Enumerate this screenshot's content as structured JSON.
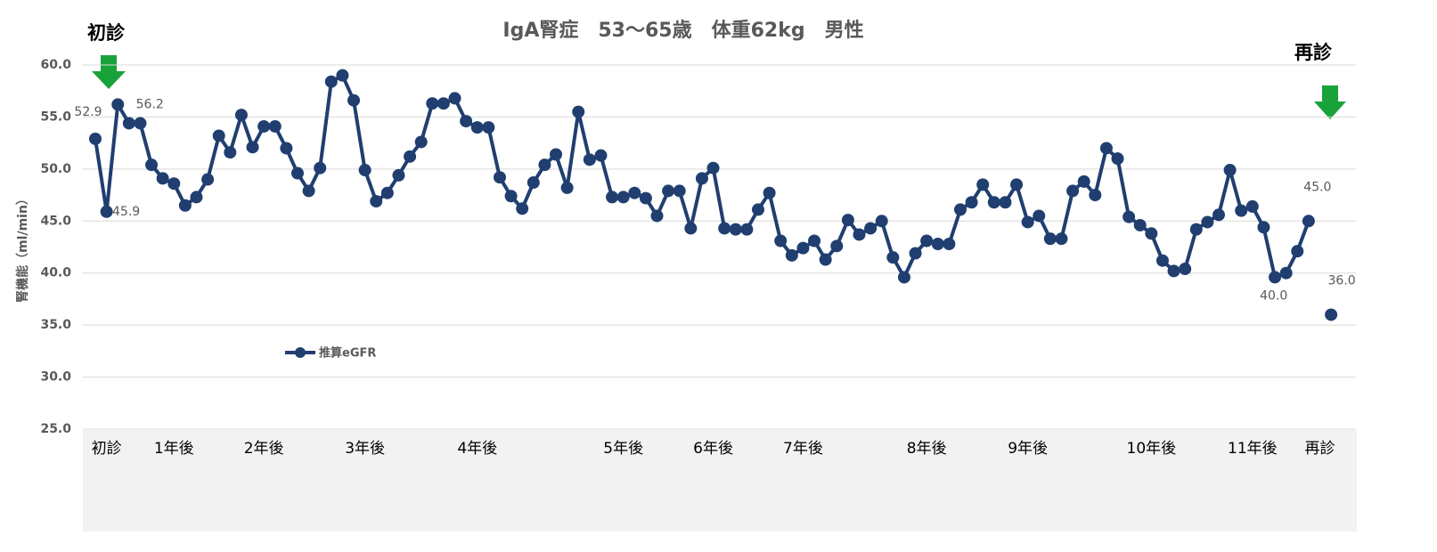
{
  "chart_data": {
    "type": "line",
    "title": "IgA腎症　53～65歳　体重62kg　男性",
    "y_label": "腎機能（ml/min）",
    "annotations": [
      "初診",
      "再診"
    ],
    "categories": [
      null,
      "初診",
      null,
      null,
      null,
      null,
      null,
      "1年後",
      null,
      null,
      null,
      null,
      null,
      null,
      null,
      "2年後",
      null,
      null,
      null,
      null,
      null,
      null,
      null,
      null,
      "3年後",
      null,
      null,
      null,
      null,
      null,
      null,
      null,
      null,
      null,
      "4年後",
      null,
      null,
      null,
      null,
      null,
      null,
      null,
      null,
      null,
      null,
      null,
      null,
      "5年後",
      null,
      null,
      null,
      null,
      null,
      null,
      null,
      "6年後",
      null,
      null,
      null,
      null,
      null,
      null,
      null,
      "7年後",
      null,
      null,
      null,
      null,
      null,
      null,
      null,
      null,
      null,
      null,
      "8年後",
      null,
      null,
      null,
      null,
      null,
      null,
      null,
      null,
      "9年後",
      null,
      null,
      null,
      null,
      null,
      null,
      null,
      null,
      null,
      null,
      "10年後",
      null,
      null,
      null,
      null,
      null,
      null,
      null,
      null,
      "11年後",
      null,
      null,
      null,
      null,
      null,
      "再診",
      null
    ],
    "series": [
      {
        "name": "推算eGFR",
        "color": "#203f70",
        "values": [
          52.9,
          45.9,
          56.2,
          54.4,
          54.4,
          50.4,
          49.1,
          48.6,
          46.5,
          47.3,
          49.0,
          53.2,
          51.6,
          55.2,
          52.1,
          54.1,
          54.1,
          52.0,
          49.6,
          47.9,
          50.1,
          58.4,
          59.0,
          56.6,
          49.9,
          46.9,
          47.7,
          49.4,
          51.2,
          52.6,
          56.3,
          56.3,
          56.8,
          54.6,
          54.0,
          54.0,
          49.2,
          47.4,
          46.2,
          48.7,
          50.4,
          51.4,
          48.2,
          55.5,
          50.9,
          51.3,
          47.3,
          47.3,
          47.7,
          47.2,
          45.5,
          47.9,
          47.9,
          44.3,
          49.1,
          50.1,
          44.3,
          44.2,
          44.2,
          46.1,
          47.7,
          43.1,
          41.7,
          42.4,
          43.1,
          41.3,
          42.6,
          45.1,
          43.7,
          44.3,
          45.0,
          41.5,
          39.6,
          41.9,
          43.1,
          42.8,
          42.8,
          46.1,
          46.8,
          48.5,
          46.8,
          46.8,
          48.5,
          44.9,
          45.5,
          43.3,
          43.3,
          47.9,
          48.8,
          47.5,
          52.0,
          51.0,
          45.4,
          44.6,
          43.8,
          41.2,
          40.2,
          40.4,
          44.2,
          44.9,
          45.6,
          49.9,
          46.0,
          46.4,
          44.4,
          39.6,
          40.0,
          42.1,
          45.0,
          null,
          36.0
        ],
        "value_labels": [
          "52.9",
          "45.9",
          "56.2",
          null,
          null,
          null,
          null,
          null,
          null,
          null,
          null,
          null,
          null,
          null,
          null,
          null,
          null,
          null,
          null,
          null,
          null,
          null,
          null,
          null,
          null,
          null,
          null,
          null,
          null,
          null,
          null,
          null,
          null,
          null,
          null,
          null,
          null,
          null,
          null,
          null,
          null,
          null,
          null,
          null,
          null,
          null,
          null,
          null,
          null,
          null,
          null,
          null,
          null,
          null,
          null,
          null,
          null,
          null,
          null,
          null,
          null,
          null,
          null,
          null,
          null,
          null,
          null,
          null,
          null,
          null,
          null,
          null,
          null,
          null,
          null,
          null,
          null,
          null,
          null,
          null,
          null,
          null,
          null,
          null,
          null,
          null,
          null,
          null,
          null,
          null,
          null,
          null,
          null,
          null,
          null,
          null,
          null,
          null,
          null,
          null,
          null,
          null,
          null,
          null,
          null,
          null,
          "40.0",
          null,
          "45.0",
          null,
          "36.0"
        ]
      }
    ],
    "ylim": [
      25,
      60
    ],
    "yticks": [
      {
        "value": 25,
        "label": "25.0"
      },
      {
        "value": 30,
        "label": "30.0"
      },
      {
        "value": 35,
        "label": "35.0"
      },
      {
        "value": 40,
        "label": "40.0"
      },
      {
        "value": 45,
        "label": "45.0"
      },
      {
        "value": 50,
        "label": "50.0"
      },
      {
        "value": 55,
        "label": "55.0"
      },
      {
        "value": 60,
        "label": "60.0"
      }
    ],
    "grid": true
  }
}
